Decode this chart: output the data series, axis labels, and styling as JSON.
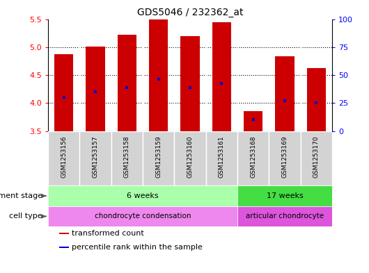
{
  "title": "GDS5046 / 232362_at",
  "samples": [
    "GSM1253156",
    "GSM1253157",
    "GSM1253158",
    "GSM1253159",
    "GSM1253160",
    "GSM1253161",
    "GSM1253168",
    "GSM1253169",
    "GSM1253170"
  ],
  "bar_tops": [
    4.87,
    5.01,
    5.22,
    5.5,
    5.19,
    5.44,
    3.86,
    4.84,
    4.63
  ],
  "bar_bottoms": [
    3.5,
    3.5,
    3.5,
    3.5,
    3.5,
    3.5,
    3.5,
    3.5,
    3.5
  ],
  "percentile_values": [
    4.1,
    4.2,
    4.28,
    4.43,
    4.28,
    4.35,
    3.71,
    4.04,
    4.0
  ],
  "ylim": [
    3.5,
    5.5
  ],
  "yticks": [
    3.5,
    4.0,
    4.5,
    5.0,
    5.5
  ],
  "right_yticks": [
    0,
    25,
    50,
    75,
    100
  ],
  "bar_color": "#cc0000",
  "percentile_color": "#0000cc",
  "development_stages": [
    {
      "label": "6 weeks",
      "start": 0,
      "end": 6,
      "color": "#aaffaa"
    },
    {
      "label": "17 weeks",
      "start": 6,
      "end": 9,
      "color": "#44dd44"
    }
  ],
  "cell_types": [
    {
      "label": "chondrocyte condensation",
      "start": 0,
      "end": 6,
      "color": "#ee88ee"
    },
    {
      "label": "articular chondrocyte",
      "start": 6,
      "end": 9,
      "color": "#dd55dd"
    }
  ],
  "legend_items": [
    {
      "label": "transformed count",
      "color": "#cc0000"
    },
    {
      "label": "percentile rank within the sample",
      "color": "#0000cc"
    }
  ],
  "dev_stage_label": "development stage",
  "cell_type_label": "cell type"
}
